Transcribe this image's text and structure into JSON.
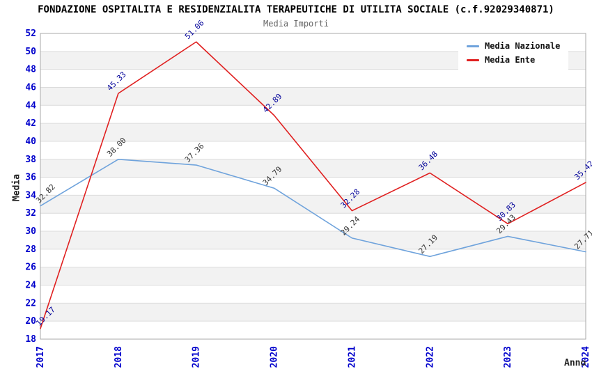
{
  "title": "FONDAZIONE OSPITALITA E RESIDENZIALITA TERAPEUTICHE DI UTILITA SOCIALE (c.f.92029340871)",
  "subtitle": "Media Importi",
  "chart_data": {
    "type": "line",
    "title": "FONDAZIONE OSPITALITA E RESIDENZIALITA TERAPEUTICHE DI UTILITA SOCIALE (c.f.92029340871)",
    "subtitle": "Media Importi",
    "xlabel": "Anno",
    "ylabel": "Media",
    "x": [
      2017,
      2018,
      2019,
      2020,
      2021,
      2022,
      2023,
      2024
    ],
    "series": [
      {
        "name": "Media Nazionale",
        "color": "#6FA3DC",
        "label_color": "#333333",
        "values": [
          32.82,
          38.0,
          37.36,
          34.79,
          29.24,
          27.19,
          29.43,
          27.71
        ]
      },
      {
        "name": "Media Ente",
        "color": "#E02020",
        "label_color": "#000099",
        "values": [
          19.17,
          45.33,
          51.06,
          42.89,
          32.28,
          36.48,
          30.83,
          35.42
        ]
      }
    ],
    "ylim": [
      18,
      52
    ],
    "ytick_step": 2,
    "yticks": [
      18,
      20,
      22,
      24,
      26,
      28,
      30,
      32,
      34,
      36,
      38,
      40,
      42,
      44,
      46,
      48,
      50,
      52
    ],
    "grid": true,
    "background_bands": true,
    "legend_position": "top-right",
    "tick_label_color": "#0000CC"
  }
}
